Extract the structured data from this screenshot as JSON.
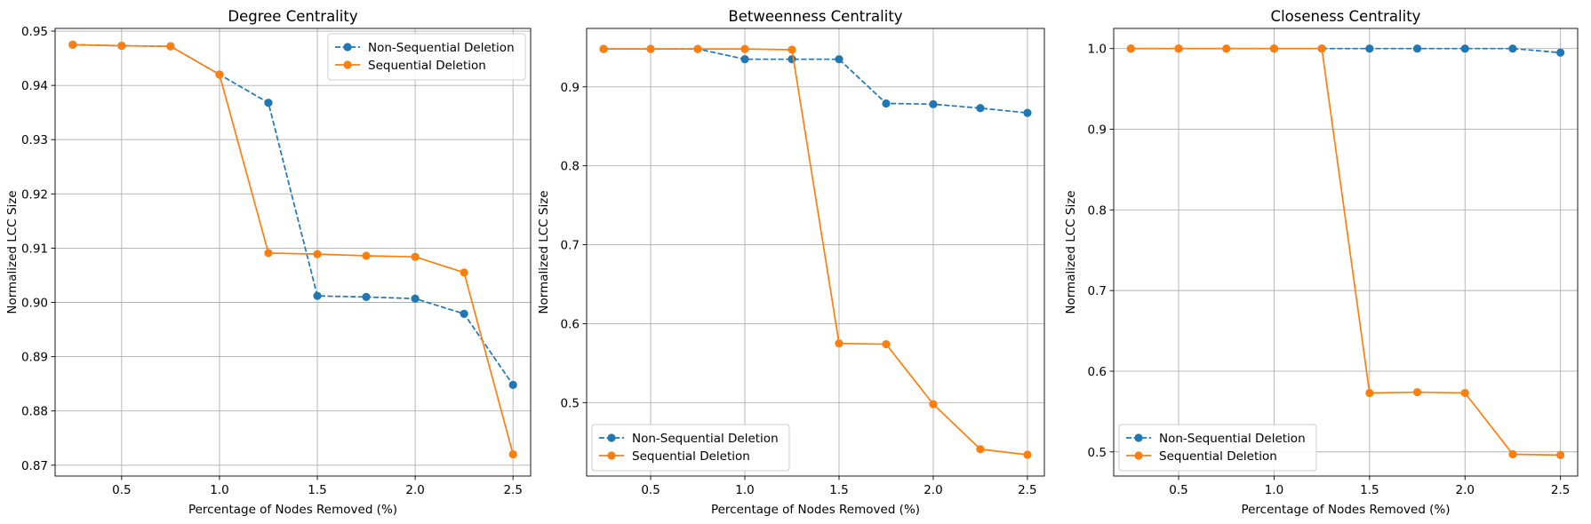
{
  "chart_data": [
    {
      "type": "line",
      "title": "Degree Centrality",
      "xlabel": "Percentage of Nodes Removed (%)",
      "ylabel": "Normalized LCC Size",
      "x": [
        0.25,
        0.5,
        0.75,
        1.0,
        1.25,
        1.5,
        1.75,
        2.0,
        2.25,
        2.5
      ],
      "xlim": [
        0.16,
        2.59
      ],
      "ylim": [
        0.868,
        0.9505
      ],
      "xticks": [
        0.5,
        1.0,
        1.5,
        2.0,
        2.5
      ],
      "xtick_labels": [
        "0.5",
        "1.0",
        "1.5",
        "2.0",
        "2.5"
      ],
      "yticks": [
        0.87,
        0.88,
        0.89,
        0.9,
        0.91,
        0.92,
        0.93,
        0.94,
        0.95
      ],
      "ytick_labels": [
        "0.87",
        "0.88",
        "0.89",
        "0.90",
        "0.91",
        "0.92",
        "0.93",
        "0.94",
        "0.95"
      ],
      "grid": true,
      "legend_position": "upper-right",
      "series": [
        {
          "name": "Non-Sequential Deletion",
          "color": "#1f77b4",
          "style": "dashed",
          "marker": "circle",
          "values": [
            0.9475,
            0.9473,
            0.9472,
            0.942,
            0.9368,
            0.9012,
            0.901,
            0.9007,
            0.8979,
            0.8848
          ]
        },
        {
          "name": "Sequential Deletion",
          "color": "#ff7f0e",
          "style": "solid",
          "marker": "circle",
          "values": [
            0.9475,
            0.9473,
            0.9472,
            0.942,
            0.9091,
            0.9089,
            0.9086,
            0.9084,
            0.9055,
            0.872
          ]
        }
      ]
    },
    {
      "type": "line",
      "title": "Betweenness Centrality",
      "xlabel": "Percentage of Nodes Removed (%)",
      "ylabel": "Normalized LCC Size",
      "x": [
        0.25,
        0.5,
        0.75,
        1.0,
        1.25,
        1.5,
        1.75,
        2.0,
        2.25,
        2.5
      ],
      "xlim": [
        0.16,
        2.59
      ],
      "ylim": [
        0.407,
        0.974
      ],
      "xticks": [
        0.5,
        1.0,
        1.5,
        2.0,
        2.5
      ],
      "xtick_labels": [
        "0.5",
        "1.0",
        "1.5",
        "2.0",
        "2.5"
      ],
      "yticks": [
        0.5,
        0.6,
        0.7,
        0.8,
        0.9
      ],
      "ytick_labels": [
        "0.5",
        "0.6",
        "0.7",
        "0.8",
        "0.9"
      ],
      "grid": true,
      "legend_position": "lower-left",
      "series": [
        {
          "name": "Non-Sequential Deletion",
          "color": "#1f77b4",
          "style": "dashed",
          "marker": "circle",
          "values": [
            0.948,
            0.948,
            0.948,
            0.935,
            0.935,
            0.935,
            0.879,
            0.878,
            0.873,
            0.867
          ]
        },
        {
          "name": "Sequential Deletion",
          "color": "#ff7f0e",
          "style": "solid",
          "marker": "circle",
          "values": [
            0.948,
            0.948,
            0.948,
            0.948,
            0.947,
            0.575,
            0.574,
            0.498,
            0.441,
            0.434
          ]
        }
      ]
    },
    {
      "type": "line",
      "title": "Closeness Centrality",
      "xlabel": "Percentage of Nodes Removed (%)",
      "ylabel": "Normalized LCC Size",
      "x": [
        0.25,
        0.5,
        0.75,
        1.0,
        1.25,
        1.5,
        1.75,
        2.0,
        2.25,
        2.5
      ],
      "xlim": [
        0.16,
        2.59
      ],
      "ylim": [
        0.47,
        1.025
      ],
      "xticks": [
        0.5,
        1.0,
        1.5,
        2.0,
        2.5
      ],
      "xtick_labels": [
        "0.5",
        "1.0",
        "1.5",
        "2.0",
        "2.5"
      ],
      "yticks": [
        0.5,
        0.6,
        0.7,
        0.8,
        0.9,
        1.0
      ],
      "ytick_labels": [
        "0.5",
        "0.6",
        "0.7",
        "0.8",
        "0.9",
        "1.0"
      ],
      "grid": true,
      "legend_position": "lower-left",
      "series": [
        {
          "name": "Non-Sequential Deletion",
          "color": "#1f77b4",
          "style": "dashed",
          "marker": "circle",
          "values": [
            1.0,
            1.0,
            1.0,
            1.0,
            1.0,
            1.0,
            1.0,
            1.0,
            1.0,
            0.995
          ]
        },
        {
          "name": "Sequential Deletion",
          "color": "#ff7f0e",
          "style": "solid",
          "marker": "circle",
          "values": [
            1.0,
            1.0,
            1.0,
            1.0,
            1.0,
            0.573,
            0.574,
            0.573,
            0.497,
            0.496
          ]
        }
      ]
    }
  ]
}
